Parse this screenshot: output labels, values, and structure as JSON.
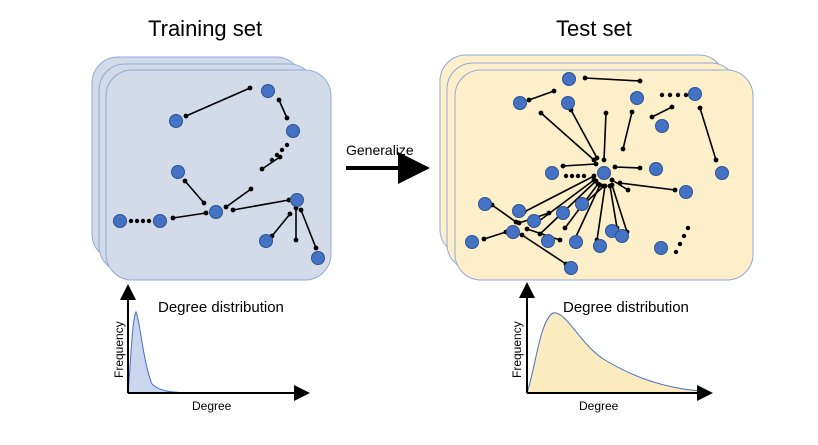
{
  "panels": {
    "training": {
      "title": "Training set",
      "fill": "#d3dbe8",
      "stroke": "#8faadc",
      "distribution_label": "Degree distribution",
      "x_axis_label": "Degree",
      "y_axis_label": "Frequency",
      "curve_fill": "#c9d6ee"
    },
    "test": {
      "title": "Test set",
      "fill": "#fdefc9",
      "stroke": "#8faadc",
      "distribution_label": "Degree distribution",
      "x_axis_label": "Degree",
      "y_axis_label": "Frequency",
      "curve_fill": "#fdebc0"
    }
  },
  "arrow": {
    "label": "Generalize"
  },
  "colors": {
    "node": "#4472c4",
    "node_stroke": "#2f528f",
    "edge": "#000000"
  }
}
